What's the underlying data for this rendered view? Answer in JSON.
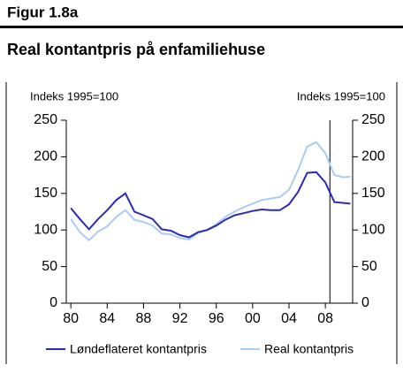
{
  "header": "Figur 1.8a",
  "chart_data": {
    "type": "line",
    "title": "Real kontantpris på enfamiliehuse",
    "ylabel": "Indeks 1995=100",
    "y2label": "Indeks 1995=100",
    "x": [
      1980,
      1981,
      1982,
      1983,
      1984,
      1985,
      1986,
      1987,
      1988,
      1989,
      1990,
      1991,
      1992,
      1993,
      1994,
      1995,
      1996,
      1997,
      1998,
      1999,
      2000,
      2001,
      2002,
      2003,
      2004,
      2005,
      2006,
      2007,
      2008,
      2009,
      2010,
      2010.75
    ],
    "series": [
      {
        "name": "Løndeflateret kontantpris",
        "color": "#2b2bb8",
        "values": [
          130,
          115,
          101,
          115,
          127,
          141,
          150,
          125,
          120,
          115,
          101,
          99,
          93,
          90,
          97,
          100,
          106,
          114,
          120,
          123,
          126,
          128,
          127,
          127,
          135,
          152,
          178,
          179,
          165,
          138,
          137,
          136
        ]
      },
      {
        "name": "Real kontantpris",
        "color": "#a8cdf5",
        "values": [
          115,
          97,
          86,
          98,
          105,
          118,
          127,
          114,
          111,
          106,
          95,
          94,
          89,
          87,
          96,
          100,
          108,
          118,
          125,
          131,
          136,
          141,
          143,
          145,
          155,
          182,
          214,
          220,
          205,
          175,
          172,
          173
        ]
      }
    ],
    "xlim": [
      1979.5,
      2011
    ],
    "xticks": [
      {
        "value": 1980,
        "label": "80"
      },
      {
        "value": 1984,
        "label": "84"
      },
      {
        "value": 1988,
        "label": "88"
      },
      {
        "value": 1992,
        "label": "92"
      },
      {
        "value": 1996,
        "label": "96"
      },
      {
        "value": 2000,
        "label": "00"
      },
      {
        "value": 2004,
        "label": "04"
      },
      {
        "value": 2008,
        "label": "08"
      }
    ],
    "ylim": [
      0,
      250
    ],
    "yticks": [
      0,
      50,
      100,
      150,
      200,
      250
    ],
    "y2lim": [
      0,
      250
    ],
    "y2ticks": [
      0,
      50,
      100,
      150,
      200,
      250
    ],
    "vline_x": 2008.5,
    "legend": "bottom"
  }
}
